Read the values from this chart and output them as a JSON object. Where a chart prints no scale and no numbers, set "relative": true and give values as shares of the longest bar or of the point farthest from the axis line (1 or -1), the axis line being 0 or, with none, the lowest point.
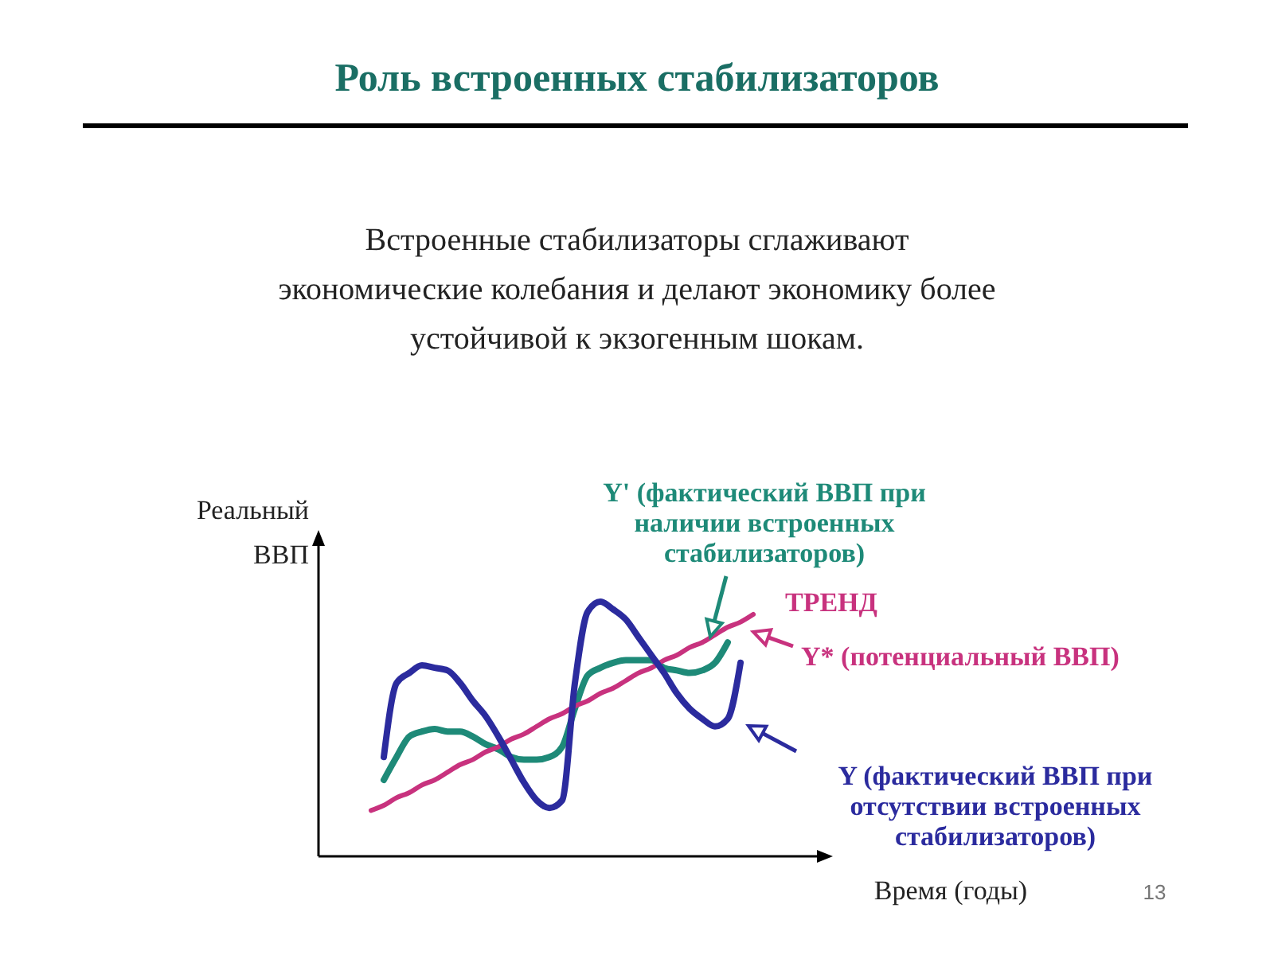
{
  "chart_data": {
    "type": "line",
    "relative": true,
    "title": "Роль встроенных стабилизаторов",
    "subtitle": "Встроенные стабилизаторы сглаживают экономические колебания и делают экономику более устойчивой к экзогенным шокам.",
    "xlabel": "Время (годы)",
    "ylabel": "Реальный ВВП",
    "legend": "right",
    "marker": "none",
    "line_style": "solid",
    "categories": [
      null,
      null,
      null,
      null,
      null,
      null,
      null,
      null,
      null,
      null,
      null,
      null,
      null,
      null,
      null,
      null,
      null,
      null,
      null,
      null,
      null,
      null,
      null,
      null,
      null,
      null,
      null,
      null,
      null,
      null,
      null
    ],
    "series": [
      {
        "name": "Y' (фактический ВВП при наличии встроенных стабилизаторов)",
        "color": "#1e8a78",
        "values": [
          null,
          0.3,
          0.39,
          0.47,
          0.49,
          0.5,
          0.49,
          0.49,
          0.47,
          0.44,
          0.42,
          0.39,
          0.38,
          0.38,
          0.39,
          0.43,
          0.58,
          0.71,
          0.74,
          0.76,
          0.77,
          0.77,
          0.77,
          0.74,
          0.73,
          0.72,
          0.73,
          0.76,
          0.84,
          null,
          null
        ]
      },
      {
        "name": "Y* (потенциальный ВВП)",
        "color": "#c8327e",
        "values": [
          0.18,
          0.2,
          0.23,
          0.25,
          0.28,
          0.3,
          0.33,
          0.36,
          0.38,
          0.41,
          0.43,
          0.46,
          0.48,
          0.51,
          0.54,
          0.56,
          0.59,
          0.61,
          0.64,
          0.66,
          0.69,
          0.72,
          0.74,
          0.77,
          0.79,
          0.82,
          0.84,
          0.87,
          0.9,
          0.92,
          0.95
        ]
      },
      {
        "name": "Y (фактический ВВП при отсутствии встроенных стабилизаторов)",
        "color": "#2b2b9e",
        "values": [
          null,
          0.39,
          0.68,
          0.72,
          0.75,
          0.74,
          0.73,
          0.68,
          0.61,
          0.55,
          0.47,
          0.38,
          0.29,
          0.22,
          0.19,
          0.22,
          0.68,
          0.96,
          1.0,
          0.97,
          0.93,
          0.86,
          0.79,
          0.72,
          0.64,
          0.58,
          0.54,
          0.51,
          0.54,
          0.76,
          null
        ]
      }
    ],
    "annotations": [
      "ТРЕНД",
      "13"
    ]
  }
}
